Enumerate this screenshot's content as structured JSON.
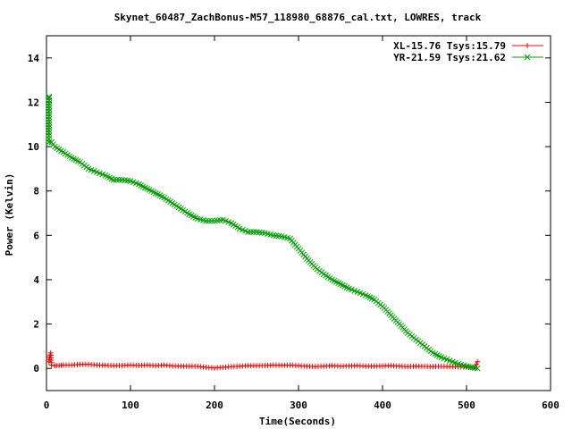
{
  "chart_data": {
    "type": "scatter",
    "title": "Skynet_60487_ZachBonus-M57_118980_68876_cal.txt, LOWRES, track",
    "xlabel": "Time(Seconds)",
    "ylabel": "Power (Kelvin)",
    "xlim": [
      0,
      600
    ],
    "ylim": [
      -1,
      15
    ],
    "xticks": [
      "0",
      "100",
      "200",
      "300",
      "400",
      "500",
      "600"
    ],
    "yticks": [
      "0",
      "2",
      "4",
      "6",
      "8",
      "10",
      "12",
      "14"
    ],
    "xtick_values": [
      0,
      100,
      200,
      300,
      400,
      500,
      600
    ],
    "ytick_values": [
      0,
      2,
      4,
      6,
      8,
      10,
      12,
      14
    ],
    "grid": false,
    "legend_position": "top-right",
    "series": [
      {
        "name": "XL-15.76 Tsys:15.79",
        "color": "#ff0000",
        "marker": "plus",
        "points": [
          [
            3,
            0.3
          ],
          [
            3,
            0.4
          ],
          [
            5,
            0.7
          ],
          [
            6,
            0.15
          ],
          [
            10,
            0.12
          ],
          [
            15,
            0.13
          ],
          [
            20,
            0.15
          ],
          [
            30,
            0.15
          ],
          [
            40,
            0.18
          ],
          [
            50,
            0.18
          ],
          [
            60,
            0.15
          ],
          [
            70,
            0.14
          ],
          [
            80,
            0.12
          ],
          [
            90,
            0.13
          ],
          [
            100,
            0.15
          ],
          [
            110,
            0.13
          ],
          [
            120,
            0.15
          ],
          [
            130,
            0.12
          ],
          [
            140,
            0.15
          ],
          [
            150,
            0.11
          ],
          [
            160,
            0.1
          ],
          [
            170,
            0.1
          ],
          [
            180,
            0.09
          ],
          [
            190,
            0.05
          ],
          [
            200,
            0.02
          ],
          [
            210,
            0.05
          ],
          [
            220,
            0.08
          ],
          [
            230,
            0.1
          ],
          [
            240,
            0.12
          ],
          [
            250,
            0.12
          ],
          [
            260,
            0.13
          ],
          [
            270,
            0.15
          ],
          [
            280,
            0.14
          ],
          [
            290,
            0.15
          ],
          [
            300,
            0.12
          ],
          [
            310,
            0.1
          ],
          [
            320,
            0.08
          ],
          [
            330,
            0.1
          ],
          [
            340,
            0.12
          ],
          [
            350,
            0.1
          ],
          [
            360,
            0.11
          ],
          [
            370,
            0.12
          ],
          [
            380,
            0.1
          ],
          [
            390,
            0.1
          ],
          [
            400,
            0.11
          ],
          [
            410,
            0.12
          ],
          [
            420,
            0.1
          ],
          [
            430,
            0.08
          ],
          [
            440,
            0.1
          ],
          [
            450,
            0.09
          ],
          [
            460,
            0.08
          ],
          [
            470,
            0.09
          ],
          [
            480,
            0.08
          ],
          [
            490,
            0.07
          ],
          [
            500,
            0.06
          ],
          [
            505,
            0.05
          ],
          [
            510,
            0.05
          ],
          [
            513,
            0.3
          ]
        ]
      },
      {
        "name": "YR-21.59 Tsys:21.62",
        "color": "#00a000",
        "marker": "cross",
        "points": [
          [
            3,
            12.25
          ],
          [
            3,
            12.2
          ],
          [
            3,
            10.5
          ],
          [
            3,
            10.2
          ],
          [
            6,
            10.2
          ],
          [
            10,
            10.0
          ],
          [
            20,
            9.75
          ],
          [
            30,
            9.5
          ],
          [
            40,
            9.3
          ],
          [
            50,
            9.0
          ],
          [
            60,
            8.85
          ],
          [
            70,
            8.7
          ],
          [
            80,
            8.5
          ],
          [
            90,
            8.5
          ],
          [
            100,
            8.45
          ],
          [
            110,
            8.3
          ],
          [
            120,
            8.1
          ],
          [
            130,
            7.9
          ],
          [
            140,
            7.7
          ],
          [
            150,
            7.45
          ],
          [
            160,
            7.2
          ],
          [
            170,
            6.95
          ],
          [
            180,
            6.75
          ],
          [
            190,
            6.65
          ],
          [
            200,
            6.65
          ],
          [
            210,
            6.7
          ],
          [
            220,
            6.55
          ],
          [
            230,
            6.3
          ],
          [
            240,
            6.15
          ],
          [
            250,
            6.15
          ],
          [
            260,
            6.1
          ],
          [
            270,
            6.0
          ],
          [
            280,
            5.95
          ],
          [
            290,
            5.85
          ],
          [
            300,
            5.4
          ],
          [
            310,
            4.95
          ],
          [
            320,
            4.55
          ],
          [
            330,
            4.25
          ],
          [
            340,
            4.0
          ],
          [
            350,
            3.8
          ],
          [
            360,
            3.6
          ],
          [
            370,
            3.45
          ],
          [
            380,
            3.3
          ],
          [
            390,
            3.1
          ],
          [
            400,
            2.8
          ],
          [
            410,
            2.4
          ],
          [
            420,
            2.0
          ],
          [
            430,
            1.6
          ],
          [
            440,
            1.3
          ],
          [
            450,
            1.0
          ],
          [
            460,
            0.7
          ],
          [
            470,
            0.5
          ],
          [
            480,
            0.35
          ],
          [
            490,
            0.2
          ],
          [
            500,
            0.1
          ],
          [
            505,
            0.05
          ],
          [
            510,
            0.02
          ],
          [
            513,
            0.0
          ]
        ]
      }
    ]
  }
}
